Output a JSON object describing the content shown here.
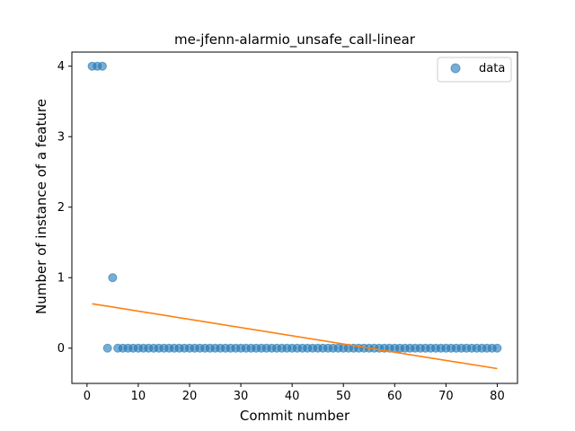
{
  "chart_data": {
    "type": "scatter",
    "title": "me-jfenn-alarmio_unsafe_call-linear",
    "xlabel": "Commit number",
    "ylabel": "Number of instance of a feature",
    "xlim": [
      -2.95,
      83.95
    ],
    "ylim": [
      -0.5,
      4.2
    ],
    "xticks": [
      0,
      10,
      20,
      30,
      40,
      50,
      60,
      70,
      80
    ],
    "yticks": [
      0,
      1,
      2,
      3,
      4
    ],
    "grid": false,
    "legend_placement": "top-right",
    "series": [
      {
        "name": "data",
        "kind": "scatter",
        "color": "#1f77b4",
        "x": [
          1,
          2,
          3,
          4,
          5,
          6,
          7,
          8,
          9,
          10,
          11,
          12,
          13,
          14,
          15,
          16,
          17,
          18,
          19,
          20,
          21,
          22,
          23,
          24,
          25,
          26,
          27,
          28,
          29,
          30,
          31,
          32,
          33,
          34,
          35,
          36,
          37,
          38,
          39,
          40,
          41,
          42,
          43,
          44,
          45,
          46,
          47,
          48,
          49,
          50,
          51,
          52,
          53,
          54,
          55,
          56,
          57,
          58,
          59,
          60,
          61,
          62,
          63,
          64,
          65,
          66,
          67,
          68,
          69,
          70,
          71,
          72,
          73,
          74,
          75,
          76,
          77,
          78,
          79,
          80
        ],
        "y": [
          4,
          4,
          4,
          0,
          1,
          0,
          0,
          0,
          0,
          0,
          0,
          0,
          0,
          0,
          0,
          0,
          0,
          0,
          0,
          0,
          0,
          0,
          0,
          0,
          0,
          0,
          0,
          0,
          0,
          0,
          0,
          0,
          0,
          0,
          0,
          0,
          0,
          0,
          0,
          0,
          0,
          0,
          0,
          0,
          0,
          0,
          0,
          0,
          0,
          0,
          0,
          0,
          0,
          0,
          0,
          0,
          0,
          0,
          0,
          0,
          0,
          0,
          0,
          0,
          0,
          0,
          0,
          0,
          0,
          0,
          0,
          0,
          0,
          0,
          0,
          0,
          0,
          0,
          0,
          0
        ]
      },
      {
        "kind": "line",
        "color": "#ff7f0e",
        "x": [
          1,
          80
        ],
        "y": [
          0.63,
          -0.29
        ]
      }
    ]
  }
}
